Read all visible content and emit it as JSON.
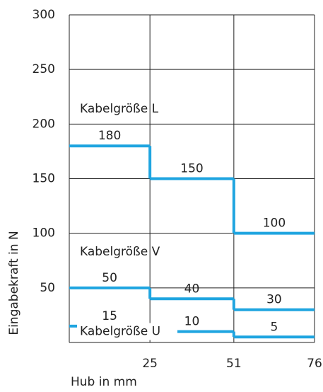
{
  "chart_data": {
    "type": "step",
    "x_label": "Hub in mm",
    "y_label": "Eingabekraft in N",
    "x": [
      0,
      25,
      51
    ],
    "series": [
      {
        "name": "Kabelgröße L",
        "color": "#1fa5e0",
        "values": [
          180,
          150,
          100
        ]
      },
      {
        "name": "Kabelgröße V",
        "color": "#1fa5e0",
        "values": [
          50,
          40,
          30
        ]
      },
      {
        "name": "Kabelgröße U",
        "color": "#1fa5e0",
        "values": [
          15,
          10,
          5
        ]
      }
    ],
    "xlim": [
      0,
      76
    ],
    "xticks": [
      25,
      51,
      76
    ],
    "ylim": [
      0,
      300
    ],
    "yticks": [
      50,
      100,
      150,
      200,
      250,
      300
    ],
    "grid": true
  }
}
